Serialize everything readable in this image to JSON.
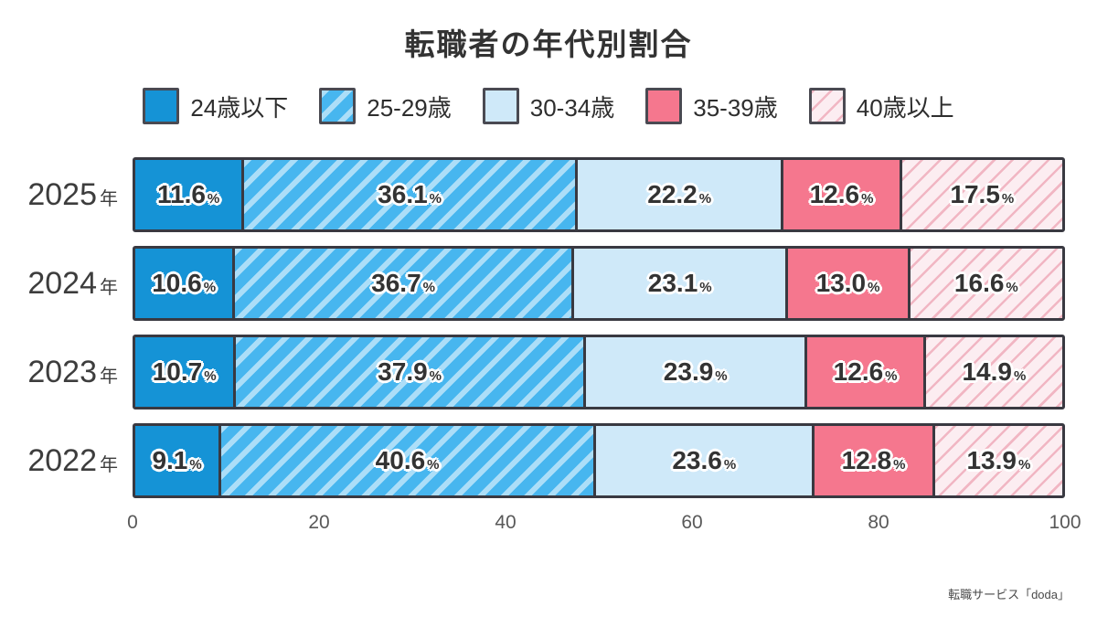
{
  "title": "転職者の年代別割合",
  "source": "転職サービス「doda」",
  "year_suffix": "年",
  "percent_sign": "%",
  "years": [
    "2025",
    "2024",
    "2023",
    "2022"
  ],
  "colors": {
    "border": "#393941",
    "label_text": "#333333",
    "axis_text": "#595959"
  },
  "age_groups": [
    {
      "label": "24歳以下",
      "fill": "#1593d6",
      "pattern": "solid"
    },
    {
      "label": "25-29歳",
      "fill": "#47b6ef",
      "pattern": "diag-wide",
      "stripe": "rgba(255,255,255,0.55)"
    },
    {
      "label": "30-34歳",
      "fill": "#cfe9f9",
      "pattern": "solid"
    },
    {
      "label": "35-39歳",
      "fill": "#f5778e",
      "pattern": "solid"
    },
    {
      "label": "40歳以上",
      "fill": "#fcedf1",
      "pattern": "diag-thin",
      "stripe": "#f1b6c3"
    }
  ],
  "chart_data": {
    "type": "bar",
    "stacked": true,
    "orientation": "horizontal",
    "title": "転職者の年代別割合",
    "categories": [
      "2025年",
      "2024年",
      "2023年",
      "2022年"
    ],
    "series": [
      {
        "name": "24歳以下",
        "values": [
          11.6,
          10.6,
          10.7,
          9.1
        ]
      },
      {
        "name": "25-29歳",
        "values": [
          36.1,
          36.7,
          37.9,
          40.6
        ]
      },
      {
        "name": "30-34歳",
        "values": [
          22.2,
          23.1,
          23.9,
          23.6
        ]
      },
      {
        "name": "35-39歳",
        "values": [
          12.6,
          13.0,
          12.6,
          12.8
        ]
      },
      {
        "name": "40歳以上",
        "values": [
          17.5,
          16.6,
          14.9,
          13.9
        ]
      }
    ],
    "value_unit": "%",
    "value_decimals": 1,
    "xlim": [
      0,
      100
    ],
    "x_ticks": [
      0,
      20,
      40,
      60,
      80,
      100
    ],
    "legend_position": "top",
    "grid": false,
    "source": "転職サービス「doda」"
  }
}
